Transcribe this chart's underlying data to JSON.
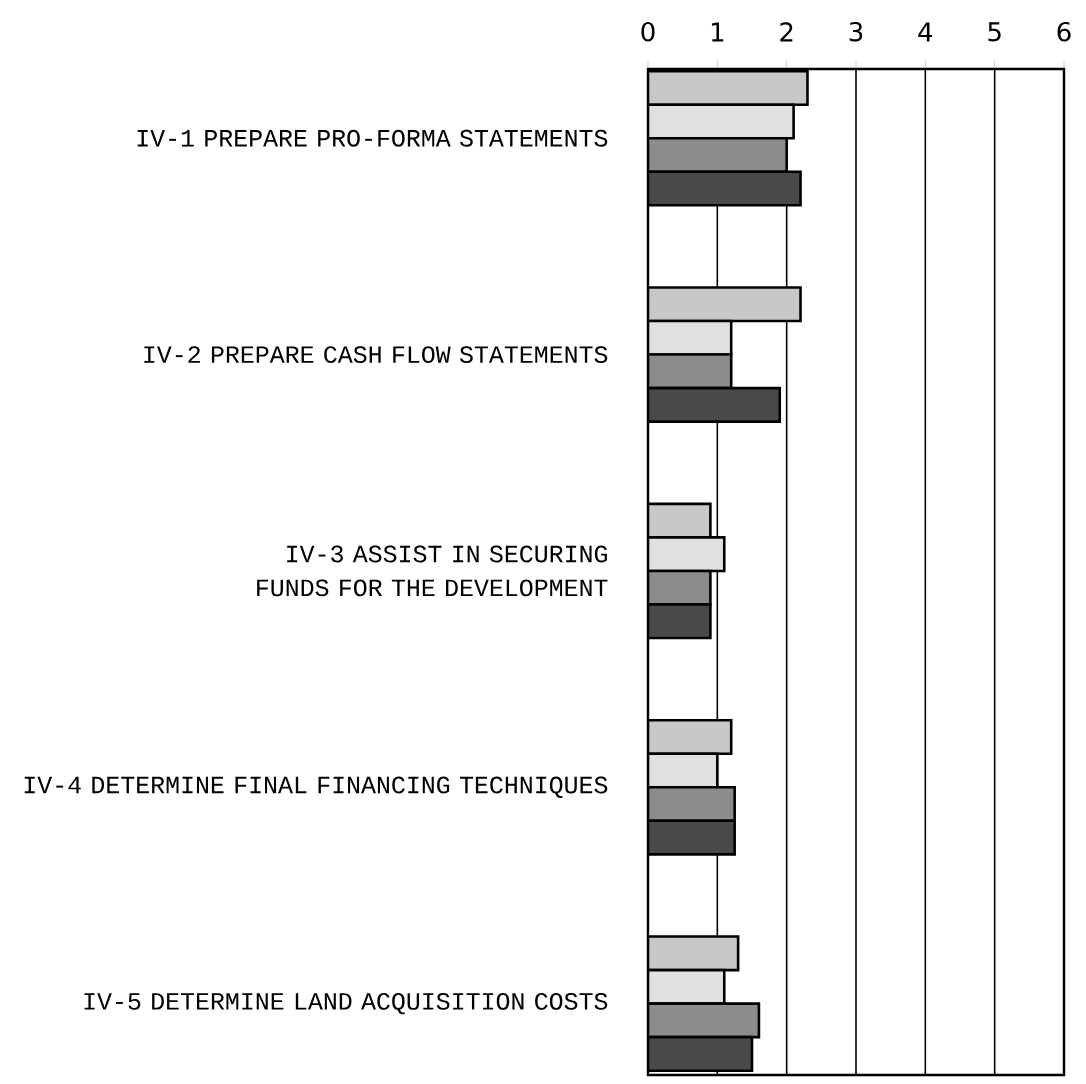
{
  "chart_data": {
    "type": "bar",
    "orientation": "horizontal",
    "categories": [
      "IV-1  PREPARE PRO-FORMA STATEMENTS",
      "IV-2  PREPARE CASH FLOW STATEMENTS",
      "IV-3  ASSIST IN SECURING FUNDS FOR THE DEVELOPMENT",
      "IV-4  DETERMINE FINAL FINANCING TECHNIQUES",
      "IV-5  DETERMINE LAND ACQUISITION COSTS"
    ],
    "series": [
      {
        "color": "#c8c8c8",
        "values": [
          2.3,
          2.2,
          0.9,
          1.2,
          1.3
        ]
      },
      {
        "color": "#e0e0e0",
        "values": [
          2.1,
          1.2,
          1.1,
          1.0,
          1.1
        ]
      },
      {
        "color": "#8c8c8c",
        "values": [
          2.0,
          1.2,
          0.9,
          1.25,
          1.6
        ]
      },
      {
        "color": "#4a4a4a",
        "values": [
          2.2,
          1.9,
          0.9,
          1.25,
          1.5
        ]
      }
    ],
    "xlim": [
      0,
      6
    ],
    "xticks": [
      0,
      1,
      2,
      3,
      4,
      5,
      6
    ],
    "grid": "x"
  }
}
